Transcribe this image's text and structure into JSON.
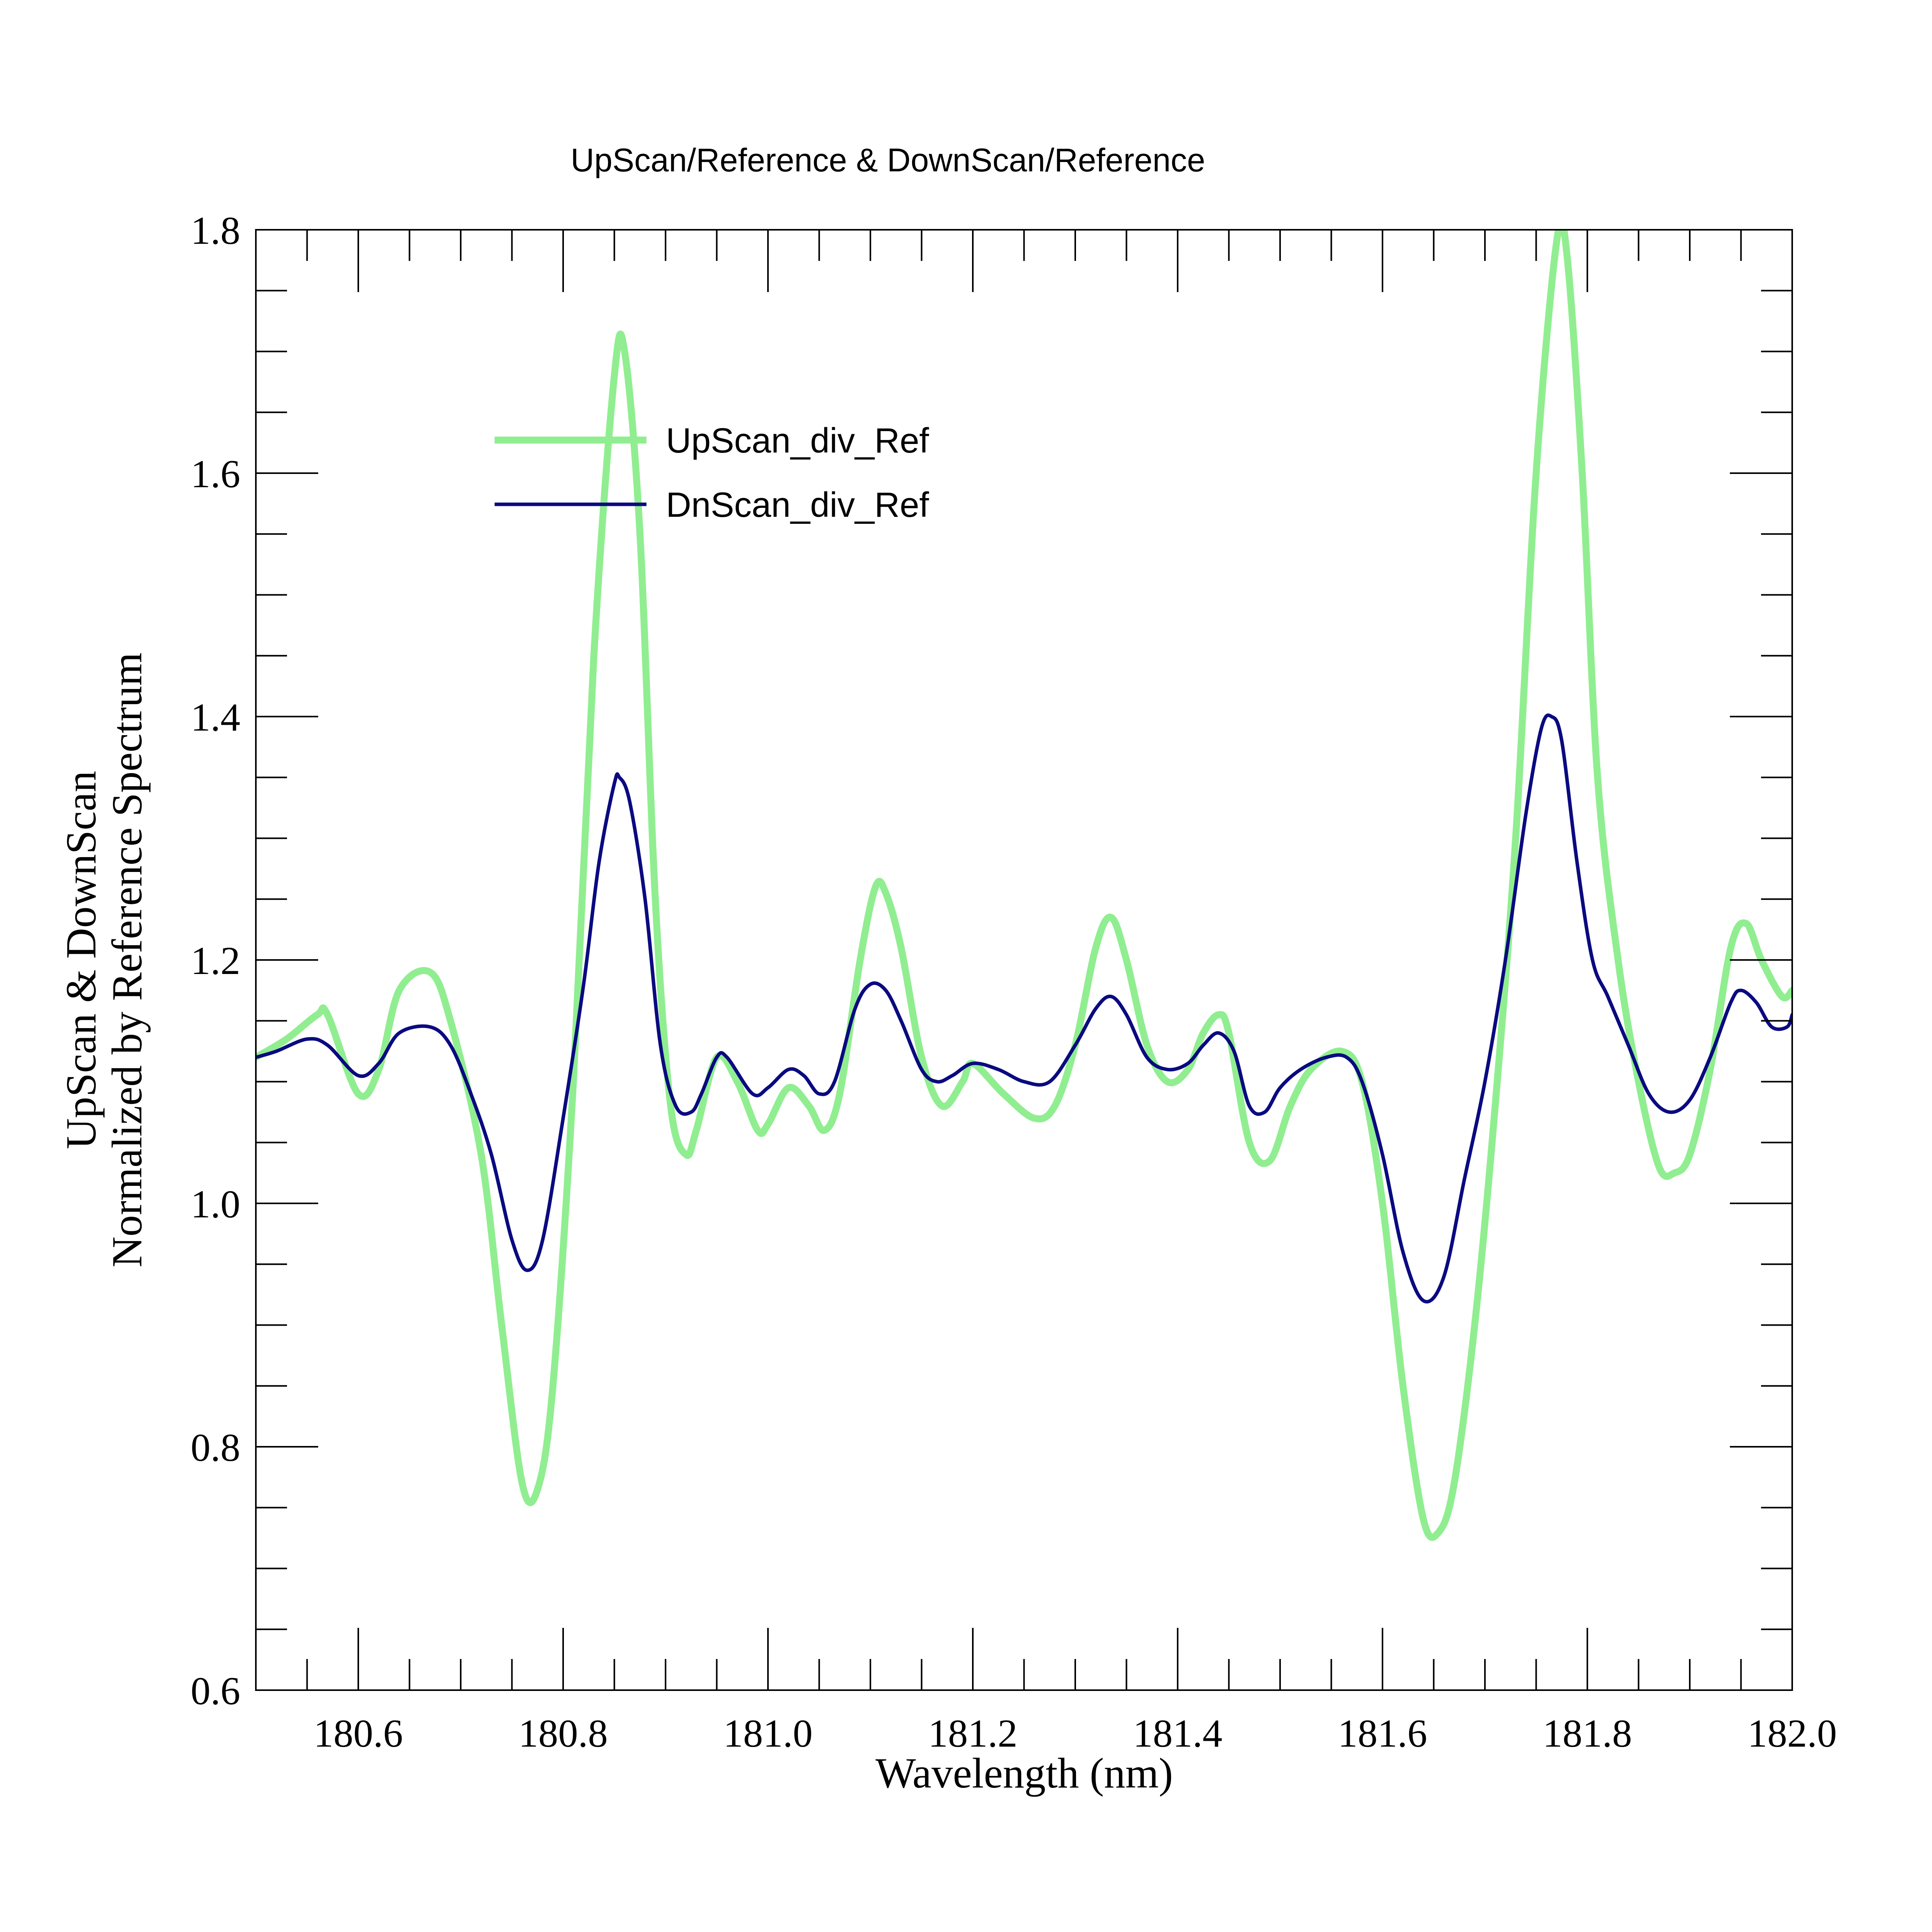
{
  "chart_data": {
    "type": "line",
    "title": "UpScan/Reference & DownScan/Reference",
    "xlabel": "Wavelength (nm)",
    "ylabel_lines": [
      "UpScan & DownScan",
      "Normalized by Reference Spectrum"
    ],
    "xlim": [
      180.5,
      182.0
    ],
    "ylim": [
      0.6,
      1.8
    ],
    "xticks": [
      180.6,
      180.8,
      181.0,
      181.2,
      181.4,
      181.6,
      181.8,
      182.0
    ],
    "xtick_labels": [
      "180.6",
      "180.8",
      "181.0",
      "181.2",
      "181.4",
      "181.6",
      "181.8",
      "182.0"
    ],
    "yticks": [
      0.6,
      0.8,
      1.0,
      1.2,
      1.4,
      1.6,
      1.8
    ],
    "ytick_labels": [
      "0.6",
      "0.8",
      "1.0",
      "1.2",
      "1.4",
      "1.6",
      "1.8"
    ],
    "grid": false,
    "legend_position": "upper-left",
    "series": [
      {
        "name": "UpScan_div_Ref",
        "color": "#90ee90",
        "points": [
          [
            180.5,
            1.12
          ],
          [
            180.53,
            1.135
          ],
          [
            180.56,
            1.155
          ],
          [
            180.57,
            1.155
          ],
          [
            180.6,
            1.09
          ],
          [
            180.62,
            1.11
          ],
          [
            180.64,
            1.175
          ],
          [
            180.67,
            1.19
          ],
          [
            180.69,
            1.15
          ],
          [
            180.72,
            1.04
          ],
          [
            180.74,
            0.9
          ],
          [
            180.76,
            0.77
          ],
          [
            180.775,
            0.765
          ],
          [
            180.79,
            0.85
          ],
          [
            180.81,
            1.1
          ],
          [
            180.83,
            1.45
          ],
          [
            180.85,
            1.68
          ],
          [
            180.86,
            1.7
          ],
          [
            180.875,
            1.55
          ],
          [
            180.89,
            1.25
          ],
          [
            180.905,
            1.08
          ],
          [
            180.92,
            1.04
          ],
          [
            180.93,
            1.06
          ],
          [
            180.95,
            1.12
          ],
          [
            180.97,
            1.1
          ],
          [
            180.99,
            1.06
          ],
          [
            181.0,
            1.065
          ],
          [
            181.02,
            1.095
          ],
          [
            181.04,
            1.08
          ],
          [
            181.055,
            1.06
          ],
          [
            181.07,
            1.09
          ],
          [
            181.09,
            1.2
          ],
          [
            181.105,
            1.26
          ],
          [
            181.115,
            1.255
          ],
          [
            181.13,
            1.21
          ],
          [
            181.15,
            1.12
          ],
          [
            181.17,
            1.08
          ],
          [
            181.19,
            1.1
          ],
          [
            181.2,
            1.115
          ],
          [
            181.23,
            1.09
          ],
          [
            181.26,
            1.07
          ],
          [
            181.28,
            1.08
          ],
          [
            181.3,
            1.13
          ],
          [
            181.32,
            1.21
          ],
          [
            181.335,
            1.235
          ],
          [
            181.35,
            1.2
          ],
          [
            181.37,
            1.13
          ],
          [
            181.39,
            1.1
          ],
          [
            181.41,
            1.11
          ],
          [
            181.425,
            1.14
          ],
          [
            181.44,
            1.155
          ],
          [
            181.45,
            1.14
          ],
          [
            181.47,
            1.05
          ],
          [
            181.49,
            1.035
          ],
          [
            181.51,
            1.08
          ],
          [
            181.53,
            1.11
          ],
          [
            181.56,
            1.125
          ],
          [
            181.58,
            1.1
          ],
          [
            181.6,
            1.0
          ],
          [
            181.62,
            0.85
          ],
          [
            181.64,
            0.74
          ],
          [
            181.655,
            0.73
          ],
          [
            181.67,
            0.77
          ],
          [
            181.69,
            0.9
          ],
          [
            181.71,
            1.08
          ],
          [
            181.73,
            1.3
          ],
          [
            181.75,
            1.6
          ],
          [
            181.77,
            1.79
          ],
          [
            181.78,
            1.78
          ],
          [
            181.795,
            1.6
          ],
          [
            181.81,
            1.35
          ],
          [
            181.83,
            1.2
          ],
          [
            181.85,
            1.1
          ],
          [
            181.87,
            1.03
          ],
          [
            181.885,
            1.025
          ],
          [
            181.9,
            1.04
          ],
          [
            181.92,
            1.11
          ],
          [
            181.94,
            1.21
          ],
          [
            181.955,
            1.23
          ],
          [
            181.97,
            1.2
          ],
          [
            181.99,
            1.17
          ],
          [
            182.0,
            1.175
          ]
        ]
      },
      {
        "name": "DnScan_div_Ref",
        "color": "#0a0a80",
        "points": [
          [
            180.5,
            1.12
          ],
          [
            180.52,
            1.125
          ],
          [
            180.55,
            1.135
          ],
          [
            180.57,
            1.13
          ],
          [
            180.6,
            1.105
          ],
          [
            180.62,
            1.115
          ],
          [
            180.64,
            1.14
          ],
          [
            180.67,
            1.145
          ],
          [
            180.69,
            1.13
          ],
          [
            180.71,
            1.09
          ],
          [
            180.73,
            1.04
          ],
          [
            180.75,
            0.97
          ],
          [
            180.765,
            0.945
          ],
          [
            180.78,
            0.97
          ],
          [
            180.8,
            1.07
          ],
          [
            180.82,
            1.18
          ],
          [
            180.835,
            1.28
          ],
          [
            180.85,
            1.345
          ],
          [
            180.855,
            1.35
          ],
          [
            180.865,
            1.33
          ],
          [
            180.88,
            1.25
          ],
          [
            180.895,
            1.13
          ],
          [
            180.91,
            1.08
          ],
          [
            180.925,
            1.075
          ],
          [
            180.935,
            1.09
          ],
          [
            180.95,
            1.12
          ],
          [
            180.96,
            1.12
          ],
          [
            180.985,
            1.09
          ],
          [
            181.0,
            1.095
          ],
          [
            181.02,
            1.11
          ],
          [
            181.035,
            1.105
          ],
          [
            181.05,
            1.09
          ],
          [
            181.065,
            1.1
          ],
          [
            181.085,
            1.16
          ],
          [
            181.1,
            1.18
          ],
          [
            181.115,
            1.175
          ],
          [
            181.13,
            1.15
          ],
          [
            181.15,
            1.11
          ],
          [
            181.165,
            1.1
          ],
          [
            181.18,
            1.105
          ],
          [
            181.2,
            1.115
          ],
          [
            181.225,
            1.11
          ],
          [
            181.25,
            1.1
          ],
          [
            181.275,
            1.1
          ],
          [
            181.3,
            1.13
          ],
          [
            181.32,
            1.16
          ],
          [
            181.335,
            1.17
          ],
          [
            181.35,
            1.155
          ],
          [
            181.37,
            1.12
          ],
          [
            181.39,
            1.11
          ],
          [
            181.41,
            1.115
          ],
          [
            181.425,
            1.13
          ],
          [
            181.44,
            1.14
          ],
          [
            181.455,
            1.125
          ],
          [
            181.47,
            1.08
          ],
          [
            181.485,
            1.075
          ],
          [
            181.5,
            1.095
          ],
          [
            181.52,
            1.11
          ],
          [
            181.545,
            1.12
          ],
          [
            181.565,
            1.12
          ],
          [
            181.58,
            1.1
          ],
          [
            181.6,
            1.04
          ],
          [
            181.62,
            0.96
          ],
          [
            181.64,
            0.92
          ],
          [
            181.66,
            0.94
          ],
          [
            181.68,
            1.02
          ],
          [
            181.7,
            1.1
          ],
          [
            181.72,
            1.2
          ],
          [
            181.74,
            1.32
          ],
          [
            181.755,
            1.39
          ],
          [
            181.765,
            1.4
          ],
          [
            181.775,
            1.38
          ],
          [
            181.79,
            1.28
          ],
          [
            181.805,
            1.2
          ],
          [
            181.82,
            1.17
          ],
          [
            181.84,
            1.13
          ],
          [
            181.86,
            1.09
          ],
          [
            181.88,
            1.075
          ],
          [
            181.9,
            1.085
          ],
          [
            181.92,
            1.12
          ],
          [
            181.94,
            1.165
          ],
          [
            181.95,
            1.175
          ],
          [
            181.965,
            1.165
          ],
          [
            181.98,
            1.145
          ],
          [
            181.995,
            1.145
          ],
          [
            182.0,
            1.155
          ]
        ]
      }
    ]
  }
}
